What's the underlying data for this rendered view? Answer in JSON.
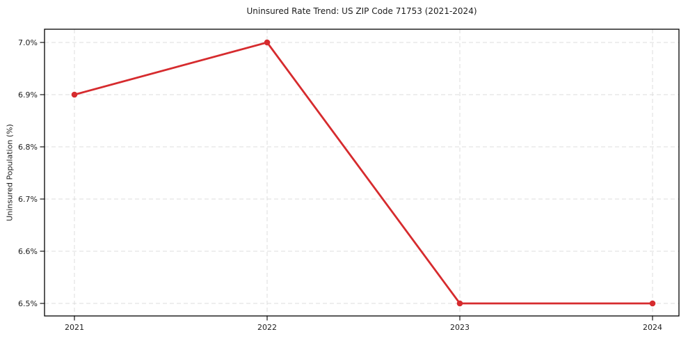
{
  "figure": {
    "title": "Uninsured Rate Trend: US ZIP Code 71753 (2021-2024)",
    "y_axis_label": "Uninsured Population (%)"
  },
  "chart_data": {
    "type": "line",
    "title": "Uninsured Rate Trend: US ZIP Code 71753 (2021-2024)",
    "xlabel": "",
    "ylabel": "Uninsured Population (%)",
    "x": [
      "2021",
      "2022",
      "2023",
      "2024"
    ],
    "series": [
      {
        "name": "Uninsured Population (%)",
        "values": [
          6.9,
          7.0,
          6.5,
          6.5
        ]
      }
    ],
    "ylim": [
      6.5,
      7.0
    ],
    "yticks": [
      6.5,
      6.6,
      6.7,
      6.8,
      6.9,
      7.0
    ],
    "ytick_labels": [
      "6.5%",
      "6.6%",
      "6.7%",
      "6.8%",
      "6.9%",
      "7.0%"
    ],
    "xtick_labels": [
      "2021",
      "2022",
      "2023",
      "2024"
    ],
    "grid": true,
    "grid_line_style": "dashed",
    "legend_position": "none",
    "colors": {
      "line": "#d62b2e",
      "marker": "#d62b2e",
      "grid": "#dcdcdc",
      "spine": "#000000",
      "tick": "#000000",
      "text": "#1c1c1c"
    }
  }
}
